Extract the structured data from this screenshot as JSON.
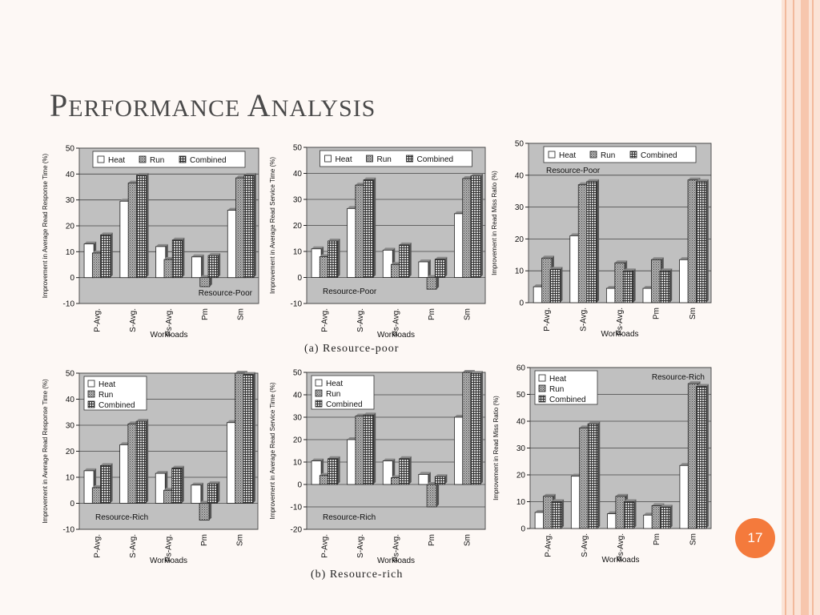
{
  "slide": {
    "title_first": "P",
    "title_rest_1": "ERFORMANCE ",
    "title_second": "A",
    "title_rest_2": "NALYSIS",
    "caption_a": "(a)  Resource-poor",
    "caption_b": "(b)  Resource-rich",
    "page_number": "17"
  },
  "colors": {
    "plot_bg": "#c0c0c0",
    "heat": "#ffffff",
    "run": "#909090",
    "combined": "#707070",
    "stripe_outer": "#f7c6ad",
    "accent": "#f47a3c"
  },
  "chart_data": [
    {
      "type": "bar",
      "panel": "resource-poor",
      "ylabel": "Improvement in Average Read Response Time (%)",
      "xlabel": "Workloads",
      "annotation": "Resource-Poor",
      "categories": [
        "P-Avg.",
        "S-Avg.",
        "Ps-Avg.",
        "Pm",
        "Sm"
      ],
      "ylim": [
        -10,
        50
      ],
      "yticks": [
        -10,
        0,
        10,
        20,
        30,
        40,
        50
      ],
      "legend": "top-horizontal",
      "annotation_position": "bottom-right",
      "series": [
        {
          "name": "Heat",
          "values": [
            13,
            29.5,
            12,
            8,
            26
          ]
        },
        {
          "name": "Run",
          "values": [
            9.5,
            36.5,
            7,
            -3.5,
            38.5
          ]
        },
        {
          "name": "Combined",
          "values": [
            16.5,
            39.5,
            14.5,
            8.5,
            39.5
          ]
        }
      ]
    },
    {
      "type": "bar",
      "panel": "resource-poor",
      "ylabel": "Improvement in Average Read Service Time (%)",
      "xlabel": "Workloads",
      "annotation": "Resource-Poor",
      "categories": [
        "P-Avg.",
        "S-Avg.",
        "Ps-Avg.",
        "Pm",
        "Sm"
      ],
      "ylim": [
        -10,
        50
      ],
      "yticks": [
        -10,
        0,
        10,
        20,
        30,
        40,
        50
      ],
      "legend": "top-horizontal",
      "annotation_position": "bottom-left",
      "series": [
        {
          "name": "Heat",
          "values": [
            11,
            26.5,
            10.5,
            6,
            24.5
          ]
        },
        {
          "name": "Run",
          "values": [
            8,
            35.5,
            5,
            -4.5,
            38
          ]
        },
        {
          "name": "Combined",
          "values": [
            14,
            37.5,
            12.5,
            7,
            39
          ]
        }
      ]
    },
    {
      "type": "bar",
      "panel": "resource-poor",
      "ylabel": "Improvement in Read Miss Ratio (%)",
      "xlabel": "Workloads",
      "annotation": "Resource-Poor",
      "categories": [
        "P-Avg.",
        "S-Avg.",
        "Ps-Avg.",
        "Pm",
        "Sm"
      ],
      "ylim": [
        0,
        50
      ],
      "yticks": [
        0,
        10,
        20,
        30,
        40,
        50
      ],
      "legend": "top-horizontal",
      "annotation_position": "top-left",
      "series": [
        {
          "name": "Heat",
          "values": [
            5,
            21,
            4.5,
            4.5,
            13.5
          ]
        },
        {
          "name": "Run",
          "values": [
            14,
            37,
            12.5,
            13.5,
            38.5
          ]
        },
        {
          "name": "Combined",
          "values": [
            10.5,
            38,
            10,
            10,
            38
          ]
        }
      ]
    },
    {
      "type": "bar",
      "panel": "resource-rich",
      "ylabel": "Improvement in Average Read Response Time (%)",
      "xlabel": "Workloads",
      "annotation": "Resource-Rich",
      "categories": [
        "P-Avg.",
        "S-Avg.",
        "Ps-Avg.",
        "Pm",
        "Sm"
      ],
      "ylim": [
        -10,
        50
      ],
      "yticks": [
        -10,
        0,
        10,
        20,
        30,
        40,
        50
      ],
      "legend": "top-left-vertical",
      "annotation_position": "bottom-left",
      "series": [
        {
          "name": "Heat",
          "values": [
            12.5,
            22.5,
            11.5,
            7,
            31
          ]
        },
        {
          "name": "Run",
          "values": [
            6,
            30.5,
            5,
            -6.5,
            50
          ]
        },
        {
          "name": "Combined",
          "values": [
            14.5,
            31.5,
            13.5,
            7.5,
            49.5
          ]
        }
      ]
    },
    {
      "type": "bar",
      "panel": "resource-rich",
      "ylabel": "Improvement in Average Read Service Time (%)",
      "xlabel": "Workloads",
      "annotation": "Resource-Rich",
      "categories": [
        "P-Avg.",
        "S-Avg.",
        "Ps-Avg.",
        "Pm",
        "Sm"
      ],
      "ylim": [
        -20,
        50
      ],
      "yticks": [
        -20,
        -10,
        0,
        10,
        20,
        30,
        40,
        50
      ],
      "legend": "top-left-vertical",
      "annotation_position": "bottom-left",
      "series": [
        {
          "name": "Heat",
          "values": [
            10.5,
            20,
            10.5,
            4.5,
            30
          ]
        },
        {
          "name": "Run",
          "values": [
            4,
            30.5,
            3,
            -10,
            50
          ]
        },
        {
          "name": "Combined",
          "values": [
            11.5,
            31,
            11.5,
            3.5,
            49.5
          ]
        }
      ]
    },
    {
      "type": "bar",
      "panel": "resource-rich",
      "ylabel": "Improvement in Read Miss Ratio (%)",
      "xlabel": "Workloads",
      "annotation": "Resource-Rich",
      "categories": [
        "P-Avg.",
        "S-Avg.",
        "Ps-Avg.",
        "Pm",
        "Sm"
      ],
      "ylim": [
        0,
        60
      ],
      "yticks": [
        0,
        10,
        20,
        30,
        40,
        50,
        60
      ],
      "legend": "top-left-vertical",
      "annotation_position": "top-right",
      "series": [
        {
          "name": "Heat",
          "values": [
            6,
            19.5,
            5.5,
            5,
            23.5
          ]
        },
        {
          "name": "Run",
          "values": [
            12,
            37.5,
            12,
            8.5,
            54
          ]
        },
        {
          "name": "Combined",
          "values": [
            10,
            39,
            10,
            8,
            53
          ]
        }
      ]
    }
  ]
}
